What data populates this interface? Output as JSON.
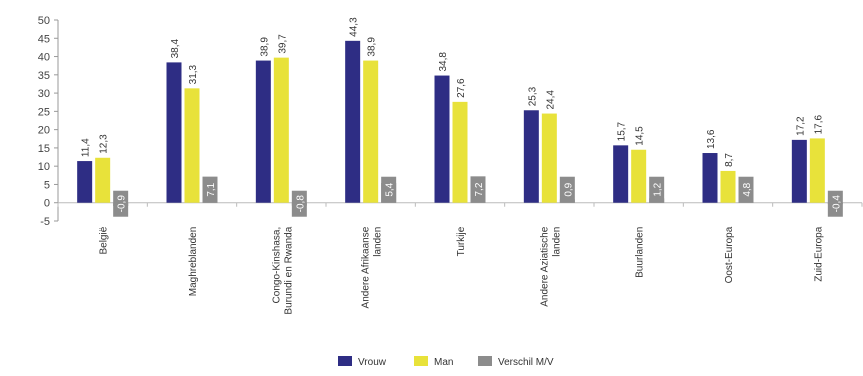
{
  "chart_data": {
    "type": "bar",
    "ylim": [
      -5,
      50
    ],
    "yticks": [
      -5,
      0,
      5,
      10,
      15,
      20,
      25,
      30,
      35,
      40,
      45,
      50
    ],
    "grid": false,
    "legend_position": "bottom",
    "categories": [
      [
        "België"
      ],
      [
        "Maghreblanden"
      ],
      [
        "Congo-Kinshasa,",
        "Burundi en Rwanda"
      ],
      [
        "Andere Afrikaanse",
        "landen"
      ],
      [
        "Turkije"
      ],
      [
        "Andere Aziatische",
        "landen"
      ],
      [
        "Buurlanden"
      ],
      [
        "Oost-Europa"
      ],
      [
        "Zuid-Europa"
      ]
    ],
    "series": [
      {
        "name": "Vrouw",
        "color": "#2e2d84",
        "values": [
          11.4,
          38.4,
          38.9,
          44.3,
          34.8,
          25.3,
          15.7,
          13.6,
          17.2
        ],
        "labels": [
          "11,4",
          "38,4",
          "38,9",
          "44,3",
          "34,8",
          "25,3",
          "15,7",
          "13,6",
          "17,2"
        ]
      },
      {
        "name": "Man",
        "color": "#e8e23a",
        "values": [
          12.3,
          31.3,
          39.7,
          38.9,
          27.6,
          24.4,
          14.5,
          8.7,
          17.6
        ],
        "labels": [
          "12,3",
          "31,3",
          "39,7",
          "38,9",
          "27,6",
          "24,4",
          "14,5",
          "8,7",
          "17,6"
        ]
      },
      {
        "name": "Verschil M/V",
        "color": "#8c8c8c",
        "values": [
          -0.9,
          7.1,
          -0.8,
          5.4,
          7.2,
          0.9,
          1.2,
          4.8,
          -0.4
        ],
        "labels": [
          "-0,9",
          "7,1",
          "-0,8",
          "5,4",
          "7,2",
          "0,9",
          "1,2",
          "4,8",
          "-0,4"
        ]
      }
    ]
  }
}
